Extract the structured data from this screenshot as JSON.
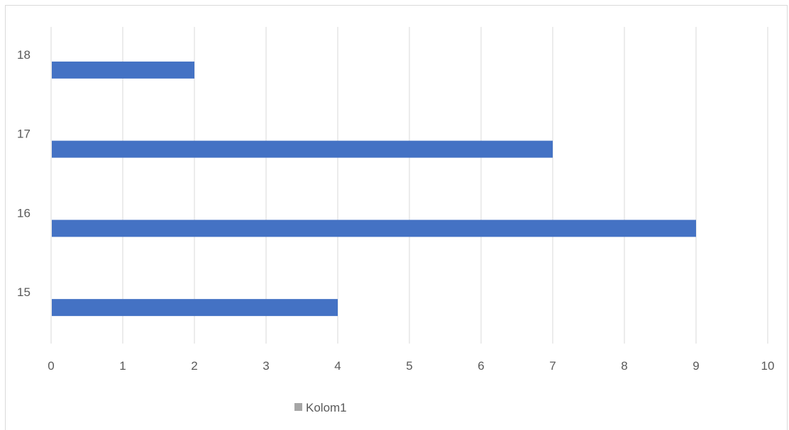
{
  "chart_data": {
    "type": "bar",
    "orientation": "horizontal",
    "categories": [
      "15",
      "16",
      "17",
      "18"
    ],
    "series": [
      {
        "name": "Kolom1",
        "values": [
          4,
          9,
          7,
          2
        ],
        "color": "#4472c4"
      }
    ],
    "xlim": [
      0,
      10
    ],
    "x_ticks": [
      0,
      1,
      2,
      3,
      4,
      5,
      6,
      7,
      8,
      9,
      10
    ],
    "legend_swatch_color": "#a6a6a6",
    "gridlines": "vertical",
    "legend_position": "bottom",
    "gridline_color": "#d9d9d9",
    "title": "",
    "xlabel": "",
    "ylabel": ""
  }
}
